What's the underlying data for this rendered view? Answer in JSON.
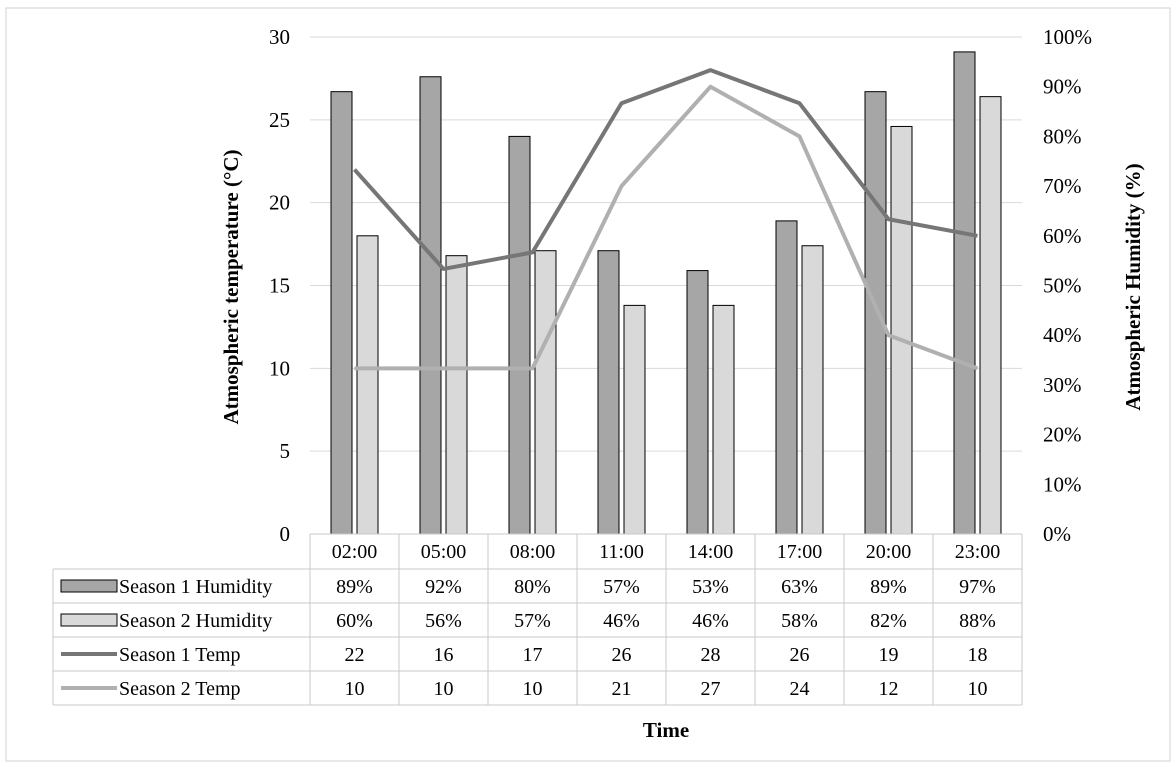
{
  "chart_data": {
    "type": "bar",
    "categories": [
      "02:00",
      "05:00",
      "08:00",
      "11:00",
      "14:00",
      "17:00",
      "20:00",
      "23:00"
    ],
    "series": [
      {
        "name": "Season 1 Humidity",
        "kind": "bar",
        "axis": "right",
        "values": [
          89,
          92,
          80,
          57,
          53,
          63,
          89,
          97
        ],
        "labels": [
          "89%",
          "92%",
          "80%",
          "57%",
          "53%",
          "63%",
          "89%",
          "97%"
        ],
        "color": "#a6a6a6"
      },
      {
        "name": "Season 2 Humidity",
        "kind": "bar",
        "axis": "right",
        "values": [
          60,
          56,
          57,
          46,
          46,
          58,
          82,
          88
        ],
        "labels": [
          "60%",
          "56%",
          "57%",
          "46%",
          "46%",
          "58%",
          "82%",
          "88%"
        ],
        "color": "#d9d9d9"
      },
      {
        "name": "Season 1 Temp",
        "kind": "line",
        "axis": "left",
        "values": [
          22,
          16,
          17,
          26,
          28,
          26,
          19,
          18
        ],
        "labels": [
          "22",
          "16",
          "17",
          "26",
          "28",
          "26",
          "19",
          "18"
        ],
        "color": "#767676"
      },
      {
        "name": "Season 2 Temp",
        "kind": "line",
        "axis": "left",
        "values": [
          10,
          10,
          10,
          21,
          27,
          24,
          12,
          10
        ],
        "labels": [
          "10",
          "10",
          "10",
          "21",
          "27",
          "24",
          "12",
          "10"
        ],
        "color": "#b0b0b0"
      }
    ],
    "xlabel": "Time",
    "ylabel": "Atmospheric temperature (°C)",
    "y2label": "Atmospheric Humidity (%)",
    "ylim": [
      0,
      30
    ],
    "y2lim": [
      0,
      100
    ],
    "yticks": [
      "0",
      "5",
      "10",
      "15",
      "20",
      "25",
      "30"
    ],
    "y2ticks": [
      "0%",
      "10%",
      "20%",
      "30%",
      "40%",
      "50%",
      "60%",
      "70%",
      "80%",
      "90%",
      "100%"
    ],
    "grid": true,
    "legend": "data-table"
  }
}
